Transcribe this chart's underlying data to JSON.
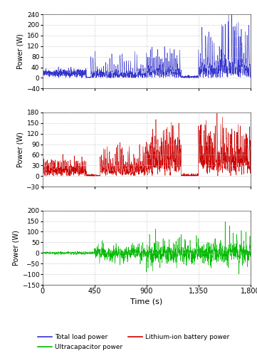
{
  "xlim": [
    0,
    1800
  ],
  "xticks": [
    0,
    450,
    900,
    1350,
    1800
  ],
  "xtick_labels": [
    "0",
    "450",
    "900",
    "1,350",
    "1,800"
  ],
  "xlabel": "Time (s)",
  "subplot1": {
    "ylim": [
      -40,
      240
    ],
    "yticks": [
      -40,
      0,
      40,
      80,
      120,
      160,
      200,
      240
    ],
    "ylabel": "Power (W)",
    "color": "#3333cc",
    "linewidth": 0.4
  },
  "subplot2": {
    "ylim": [
      -30,
      180
    ],
    "yticks": [
      -30,
      0,
      30,
      60,
      90,
      120,
      150,
      180
    ],
    "ylabel": "Power (W)",
    "color": "#cc0000",
    "linewidth": 0.4
  },
  "subplot3": {
    "ylim": [
      -150,
      200
    ],
    "yticks": [
      -150,
      -100,
      -50,
      0,
      50,
      100,
      150,
      200
    ],
    "ylabel": "Power (W)",
    "color": "#00bb00",
    "linewidth": 0.4
  },
  "legend": [
    {
      "label": "Total load power",
      "color": "#3333cc"
    },
    {
      "label": "Lithium-ion battery power",
      "color": "#cc0000"
    },
    {
      "label": "Ultracapacitor power",
      "color": "#00bb00"
    }
  ],
  "grid_color": "#bbbbbb",
  "grid_style": ":",
  "grid_linewidth": 0.6,
  "bg_color": "#ffffff",
  "figsize": [
    3.61,
    5.0
  ],
  "dpi": 100
}
